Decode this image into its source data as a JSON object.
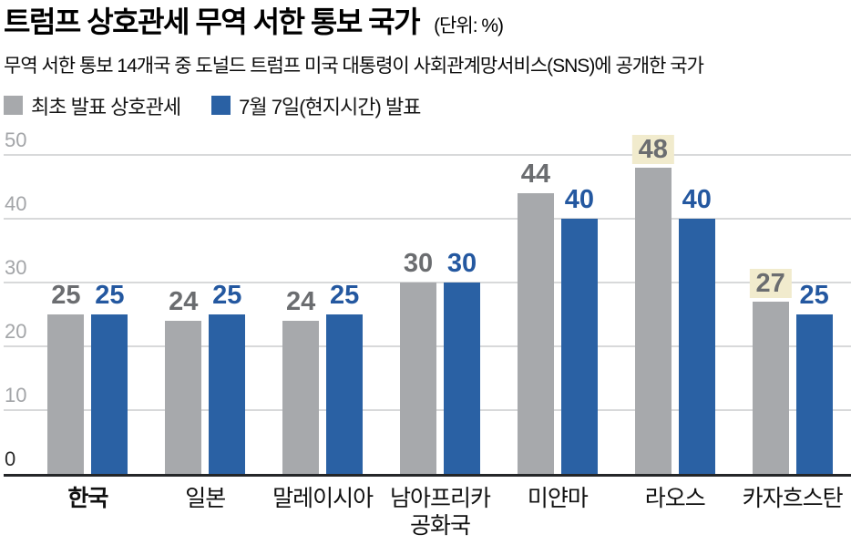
{
  "header": {
    "title": "트럼프 상호관세 무역 서한 통보 국가",
    "unit_note": "(단위: %)",
    "subtitle": "무역 서한 통보 14개국 중 도널드 트럼프 미국 대통령이 사회관계망서비스(SNS)에 공개한 국가"
  },
  "legend": [
    {
      "label": "최초 발표 상호관세",
      "color": "#a7a9ac"
    },
    {
      "label": "7월 7일(현지시간) 발표",
      "color": "#2a61a4"
    }
  ],
  "chart_data": {
    "type": "bar",
    "title": "트럼프 상호관세 무역 서한 통보 국가",
    "unit": "%",
    "categories": [
      {
        "label": "한국",
        "bold": true
      },
      {
        "label": "일본"
      },
      {
        "label": "말레이시아"
      },
      {
        "label": "남아프리카\n공화국"
      },
      {
        "label": "미얀마"
      },
      {
        "label": "라오스"
      },
      {
        "label": "카자흐스탄"
      }
    ],
    "series": [
      {
        "name": "최초 발표 상호관세",
        "bar_color": "#a7a9ac",
        "label_color": "#6b6d70",
        "values": [
          25,
          24,
          24,
          30,
          44,
          48,
          27
        ],
        "highlight": [
          false,
          false,
          false,
          false,
          false,
          true,
          true
        ]
      },
      {
        "name": "7월 7일(현지시간) 발표",
        "bar_color": "#2a61a4",
        "label_color": "#2458a0",
        "values": [
          25,
          25,
          25,
          30,
          40,
          40,
          25
        ],
        "highlight": [
          false,
          false,
          false,
          false,
          false,
          false,
          false
        ]
      }
    ],
    "highlight_color": "#f1ebcd",
    "y_ticks": [
      0,
      10,
      20,
      30,
      40,
      50
    ],
    "ylim": [
      0,
      50
    ],
    "grid": true,
    "gridline_color": "#d8d9da",
    "baseline_color": "#242628",
    "legend_position": "top"
  }
}
